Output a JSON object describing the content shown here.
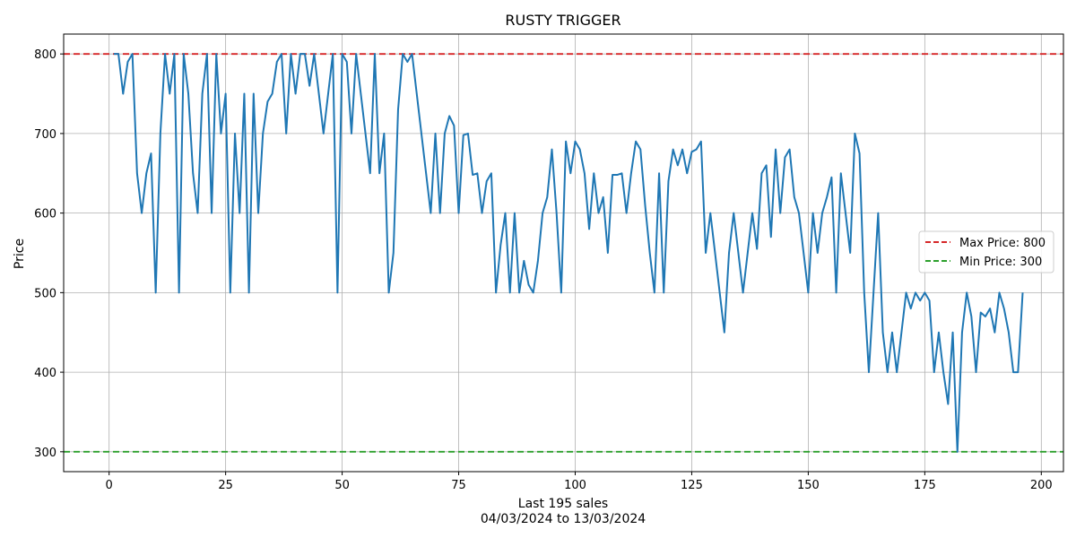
{
  "chart_data": {
    "type": "line",
    "title": "RUSTY TRIGGER",
    "xlabel": "Last 195 sales",
    "xlabel_sub": "04/03/2024 to 13/03/2024",
    "ylabel": "Price",
    "xlim": [
      -9.75,
      204.75
    ],
    "ylim": [
      275,
      825
    ],
    "xticks": [
      0,
      25,
      50,
      75,
      100,
      125,
      150,
      175,
      200
    ],
    "yticks": [
      300,
      400,
      500,
      600,
      700,
      800
    ],
    "grid": true,
    "legend_position": "center-right",
    "series": [
      {
        "color": "#1f77b4",
        "y": [
          800,
          800,
          750,
          790,
          800,
          650,
          600,
          650,
          675,
          500,
          700,
          800,
          750,
          800,
          500,
          800,
          750,
          650,
          600,
          750,
          800,
          600,
          800,
          700,
          750,
          500,
          700,
          600,
          750,
          500,
          750,
          600,
          700,
          740,
          750,
          790,
          800,
          700,
          800,
          750,
          800,
          800,
          760,
          800,
          750,
          700,
          750,
          800,
          500,
          800,
          790,
          700,
          800,
          750,
          700,
          650,
          800,
          650,
          700,
          500,
          550,
          730,
          800,
          790,
          800,
          750,
          700,
          650,
          600,
          700,
          600,
          700,
          722,
          710,
          600,
          698,
          700,
          648,
          650,
          600,
          640,
          650,
          500,
          560,
          600,
          500,
          600,
          500,
          540,
          510,
          500,
          540,
          600,
          620,
          680,
          600,
          500,
          690,
          650,
          690,
          680,
          650,
          580,
          650,
          600,
          620,
          550,
          648,
          648,
          650,
          600,
          650,
          690,
          680,
          610,
          550,
          500,
          650,
          500,
          640,
          680,
          660,
          680,
          650,
          677,
          680,
          690,
          550,
          600,
          550,
          500,
          450,
          550,
          600,
          550,
          500,
          550,
          600,
          555,
          650,
          660,
          570,
          680,
          600,
          670,
          680,
          620,
          600,
          550,
          500,
          600,
          550,
          600,
          620,
          645,
          500,
          650,
          600,
          550,
          700,
          675,
          500,
          400,
          500,
          600,
          450,
          400,
          450,
          400,
          450,
          500,
          480,
          500,
          490,
          500,
          490,
          400,
          450,
          400,
          360,
          450,
          300,
          450,
          500,
          470,
          400,
          475,
          470,
          480,
          450,
          500,
          480,
          450,
          400,
          400,
          500
        ]
      }
    ],
    "hlines": [
      {
        "y": 800,
        "label": "Max Price: 800",
        "color": "#d62728",
        "style": "dashed"
      },
      {
        "y": 300,
        "label": "Min Price: 300",
        "color": "#2ca02c",
        "style": "dashed"
      }
    ]
  }
}
